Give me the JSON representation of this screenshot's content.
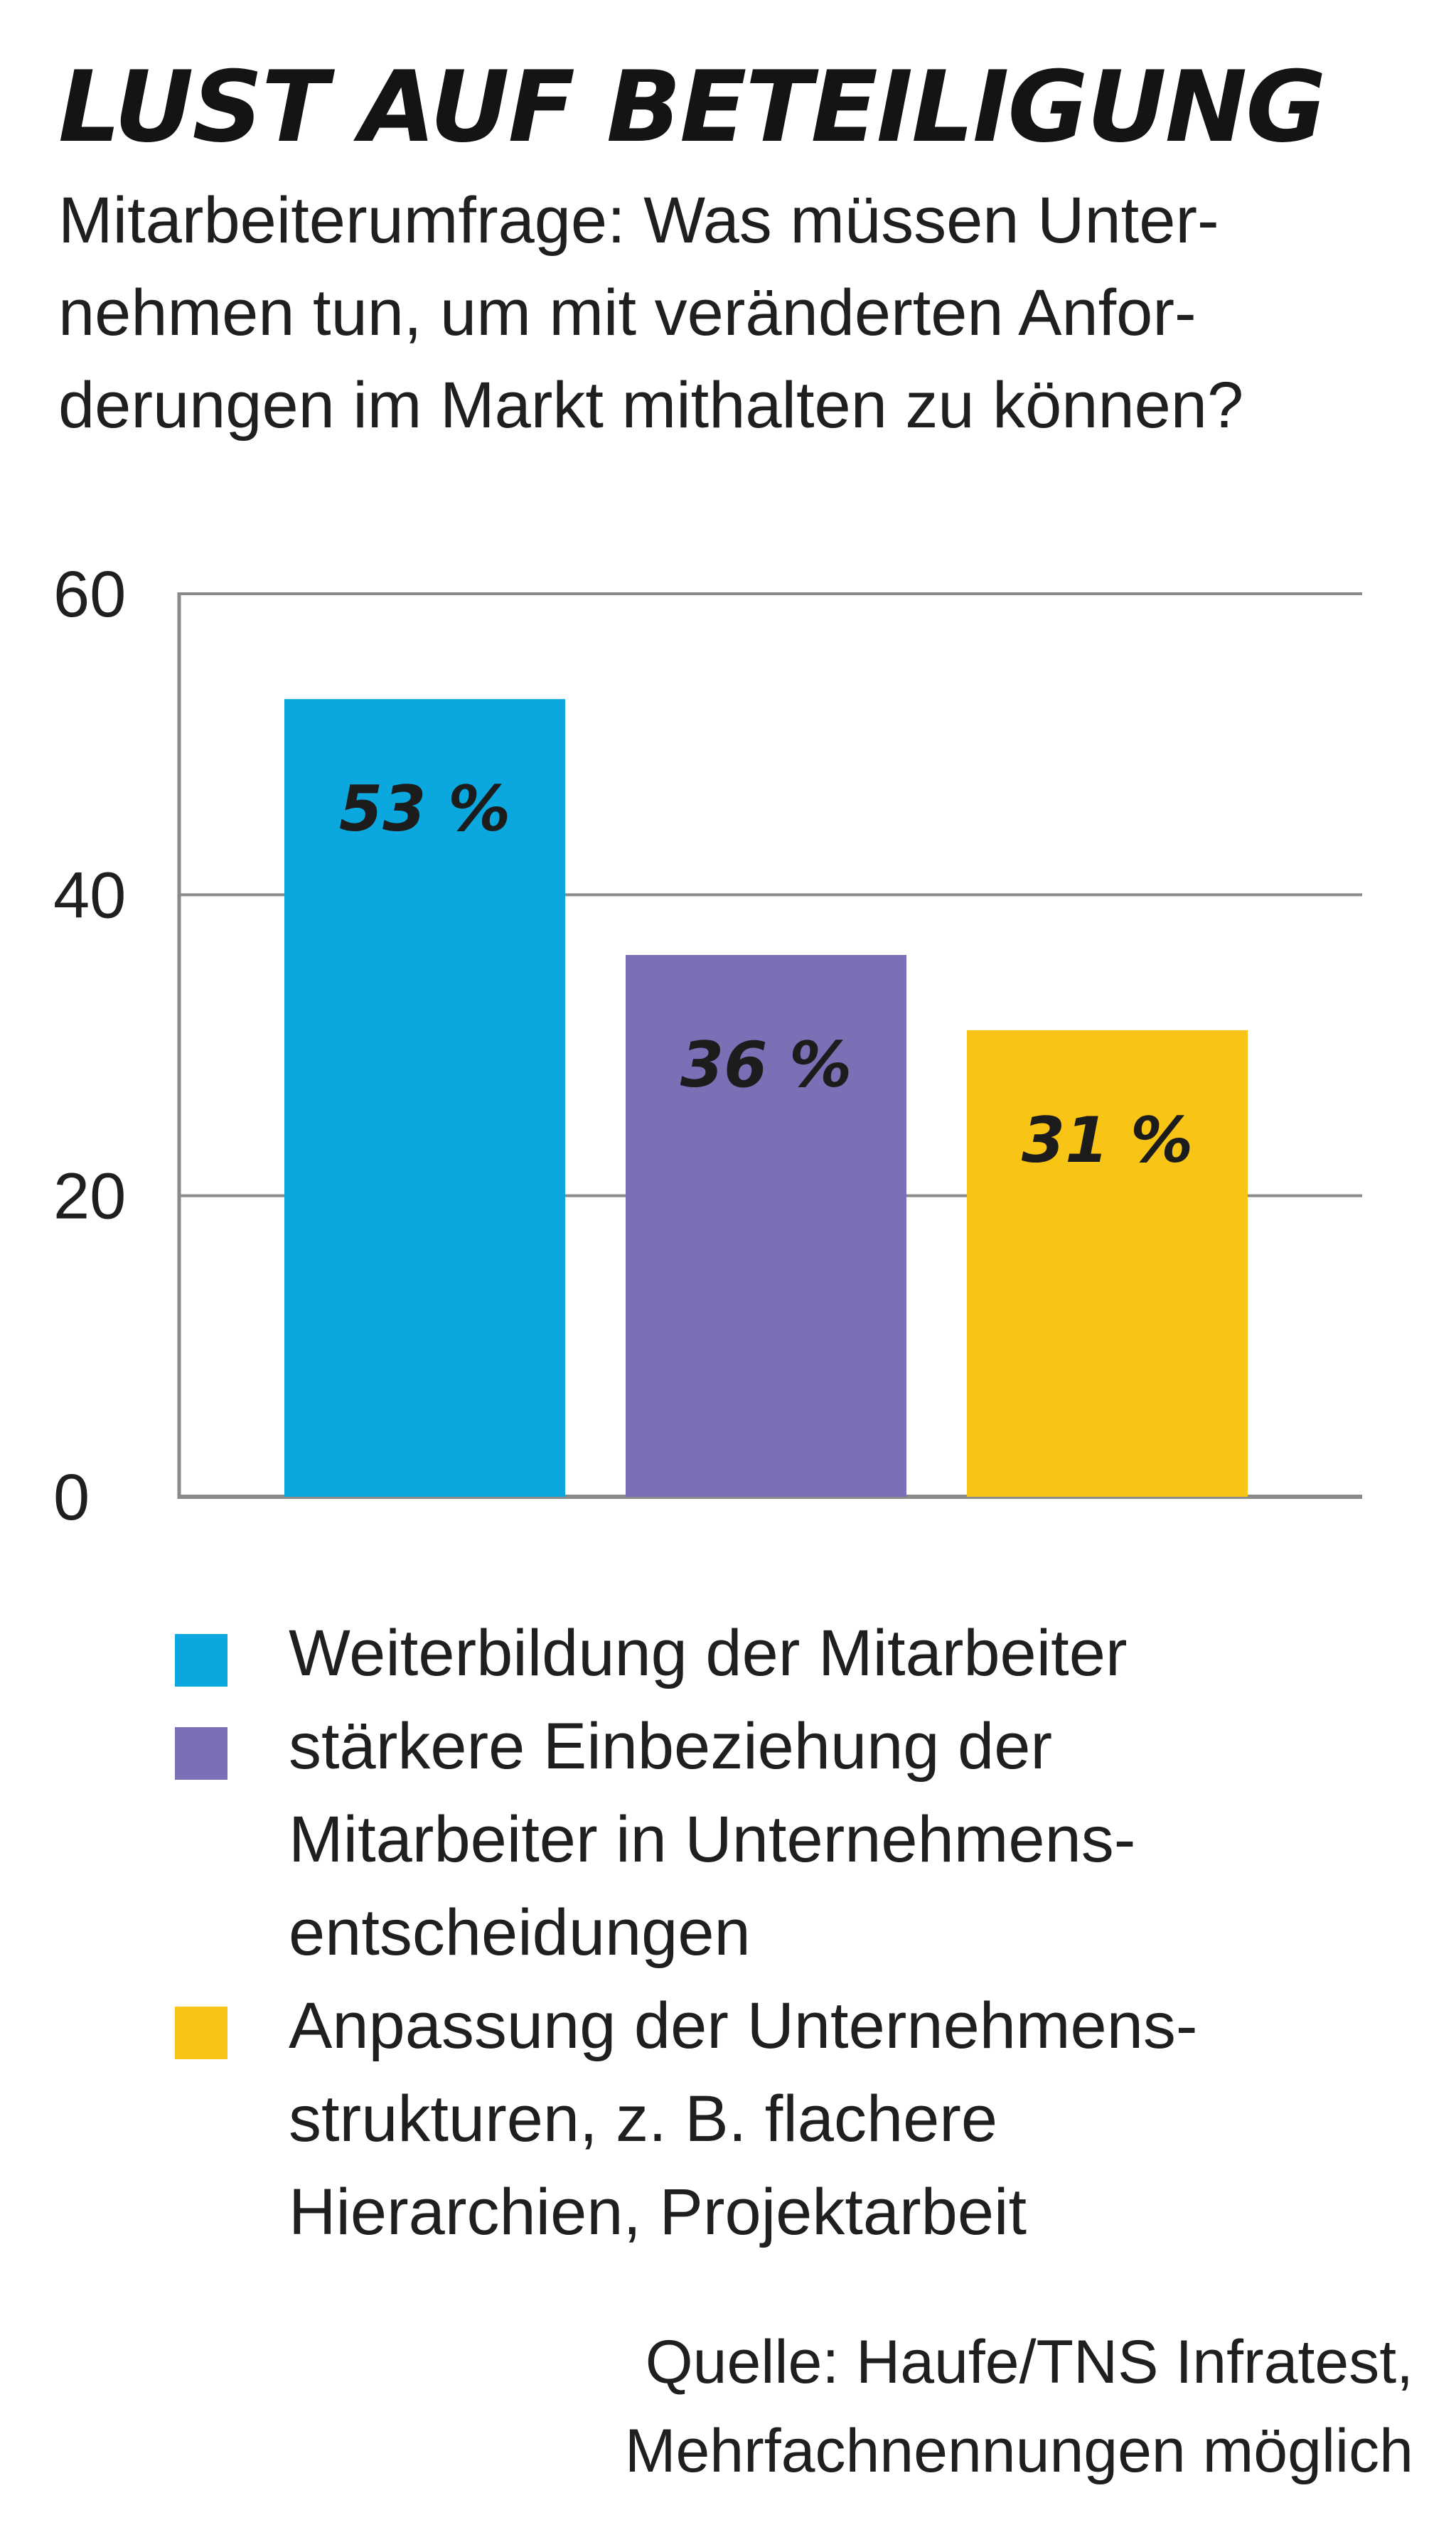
{
  "title": "LUST AUF BETEILIGUNG",
  "subtitle_lines": [
    "Mitarbeiterumfrage: Was müssen Unter-",
    "nehmen tun, um mit veränderten Anfor-",
    "derungen im Markt mithalten zu können?"
  ],
  "chart_data": {
    "type": "bar",
    "categories": [
      "Weiterbildung der Mitarbeiter",
      "stärkere Einbeziehung der Mitarbeiter in Unternehmensentscheidungen",
      "Anpassung der Unternehmensstrukturen, z. B. flachere Hierarchien, Projektarbeit"
    ],
    "values": [
      53,
      36,
      31
    ],
    "value_labels": [
      "53 %",
      "36 %",
      "31 %"
    ],
    "colors": [
      "#0aa8df",
      "#7b6fb6",
      "#f8c415"
    ],
    "ylim": [
      0,
      60
    ],
    "yticks": [
      0,
      20,
      40,
      60
    ],
    "ytick_labels": [
      "0",
      "20",
      "40",
      "60"
    ],
    "grid": true,
    "legend_placement": "bottom"
  },
  "legend": [
    {
      "color": "#0aa8df",
      "lines": [
        "Weiterbildung der Mitarbeiter"
      ]
    },
    {
      "color": "#7b6fb6",
      "lines": [
        "stärkere Einbeziehung der",
        "Mitarbeiter in Unternehmens-",
        "entscheidungen"
      ]
    },
    {
      "color": "#f8c415",
      "lines": [
        "Anpassung der Unternehmens-",
        "strukturen, z. B. flachere",
        "Hierarchien, Projektarbeit"
      ]
    }
  ],
  "source_lines": [
    "Quelle: Haufe/TNS Infratest,",
    "Mehrfachnennungen möglich"
  ]
}
